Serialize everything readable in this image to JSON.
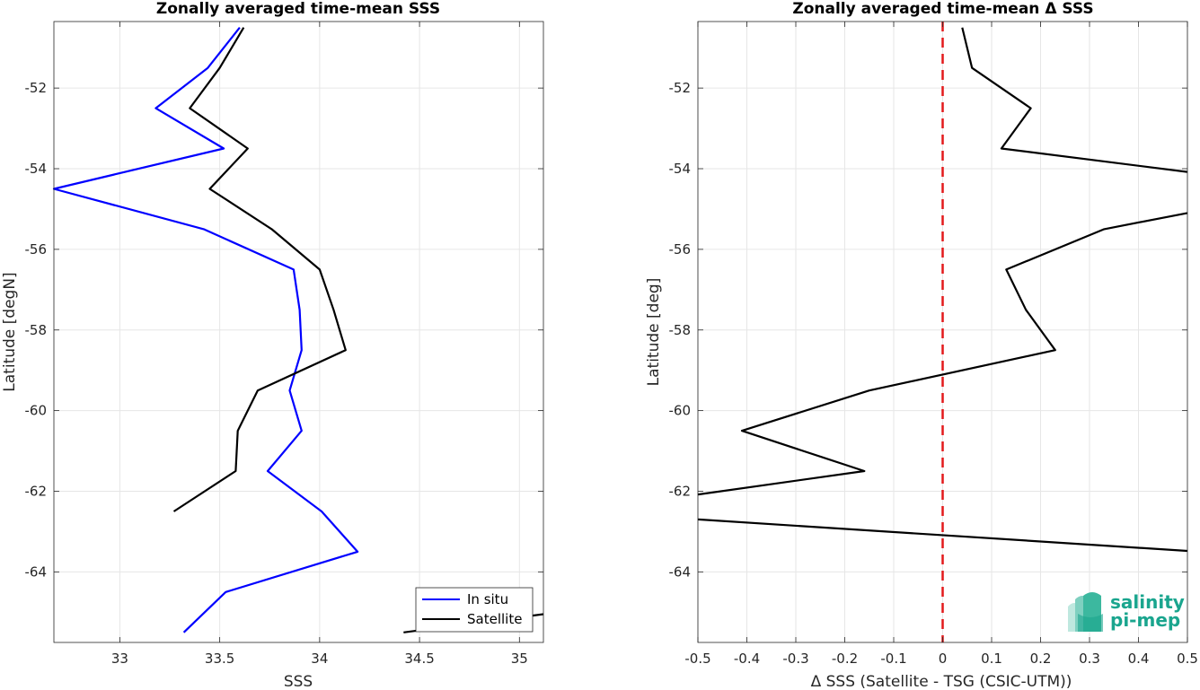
{
  "charts": [
    {
      "title": "Zonally averaged time-mean SSS",
      "xlabel": "SSS",
      "ylabel": "Latitude [degN]",
      "xlim": [
        32.67,
        35.12
      ],
      "ylim": [
        -65.75,
        -50.35
      ],
      "xticks": [
        33,
        33.5,
        34,
        34.5,
        35
      ],
      "xtick_labels": [
        "33",
        "33.5",
        "34",
        "34.5",
        "35"
      ],
      "yticks": [
        -52,
        -54,
        -56,
        -58,
        -60,
        -62,
        -64
      ],
      "ytick_labels": [
        "-52",
        "-54",
        "-56",
        "-58",
        "-60",
        "-62",
        "-64"
      ]
    },
    {
      "title": "Zonally averaged time-mean Δ SSS",
      "xlabel": "Δ SSS (Satellite - TSG (CSIC-UTM))",
      "ylabel": "Latitude [deg]",
      "xlim": [
        -0.5,
        0.5
      ],
      "ylim": [
        -65.75,
        -50.35
      ],
      "xticks": [
        -0.5,
        -0.4,
        -0.3,
        -0.2,
        -0.1,
        0,
        0.1,
        0.2,
        0.3,
        0.4,
        0.5
      ],
      "xtick_labels": [
        "-0.5",
        "-0.4",
        "-0.3",
        "-0.2",
        "-0.1",
        "0",
        "0.1",
        "0.2",
        "0.3",
        "0.4",
        "0.5"
      ],
      "yticks": [
        -52,
        -54,
        -56,
        -58,
        -60,
        -62,
        -64
      ],
      "ytick_labels": [
        "-52",
        "-54",
        "-56",
        "-58",
        "-60",
        "-62",
        "-64"
      ]
    }
  ],
  "legend": {
    "placement": "bottom-right",
    "items": [
      "In situ",
      "Satellite"
    ]
  },
  "logo": {
    "line1": "salinity",
    "line2": "pi-mep"
  },
  "colors": {
    "in_situ": "#0000ff",
    "satellite": "#000000",
    "zero_line": "#e31a1c",
    "grid": "#e6e6e6",
    "logo": "#1aa58e"
  },
  "chart_data": [
    {
      "type": "line",
      "title": "Zonally averaged time-mean SSS",
      "xlabel": "SSS",
      "ylabel": "Latitude [degN]",
      "xlim": [
        32.67,
        35.12
      ],
      "ylim": [
        -65.75,
        -50.35
      ],
      "grid": true,
      "legend": "bottom-right",
      "series": [
        {
          "name": "In situ",
          "color": "#0000ff",
          "points": [
            [
              33.6,
              -50.5
            ],
            [
              33.44,
              -51.5
            ],
            [
              33.18,
              -52.5
            ],
            [
              33.52,
              -53.5
            ],
            [
              32.67,
              -54.5
            ],
            [
              33.42,
              -55.5
            ],
            [
              33.87,
              -56.5
            ],
            [
              33.9,
              -57.5
            ],
            [
              33.91,
              -58.5
            ],
            [
              33.85,
              -59.5
            ],
            [
              33.91,
              -60.5
            ],
            [
              33.74,
              -61.5
            ],
            [
              34.01,
              -62.5
            ],
            [
              34.19,
              -63.5
            ],
            [
              33.53,
              -64.5
            ],
            [
              33.32,
              -65.5
            ]
          ]
        },
        {
          "name": "Satellite",
          "color": "#000000",
          "segments": [
            [
              [
                33.62,
                -50.5
              ],
              [
                33.5,
                -51.5
              ],
              [
                33.35,
                -52.5
              ],
              [
                33.64,
                -53.5
              ],
              [
                33.45,
                -54.5
              ],
              [
                33.76,
                -55.5
              ],
              [
                34.0,
                -56.5
              ],
              [
                34.07,
                -57.5
              ],
              [
                34.13,
                -58.5
              ],
              [
                33.69,
                -59.5
              ],
              [
                33.59,
                -60.5
              ],
              [
                33.58,
                -61.5
              ],
              [
                33.27,
                -62.5
              ]
            ],
            [
              [
                34.42,
                -65.5
              ],
              [
                35.12,
                -65.05
              ]
            ]
          ]
        }
      ]
    },
    {
      "type": "line",
      "title": "Zonally averaged time-mean Δ SSS",
      "xlabel": "Δ SSS (Satellite - TSG (CSIC-UTM))",
      "ylabel": "Latitude [deg]",
      "xlim": [
        -0.5,
        0.5
      ],
      "ylim": [
        -65.75,
        -50.35
      ],
      "grid": true,
      "reference_line": {
        "x": 0,
        "color": "#e31a1c",
        "style": "dashed"
      },
      "series": [
        {
          "name": "",
          "color": "#000000",
          "segments": [
            [
              [
                0.04,
                -50.5
              ],
              [
                0.06,
                -51.5
              ],
              [
                0.18,
                -52.5
              ],
              [
                0.12,
                -53.5
              ],
              [
                0.5,
                -54.08
              ]
            ],
            [
              [
                0.5,
                -55.1
              ],
              [
                0.33,
                -55.5
              ],
              [
                0.13,
                -56.5
              ],
              [
                0.17,
                -57.5
              ],
              [
                0.23,
                -58.5
              ],
              [
                -0.15,
                -59.5
              ],
              [
                -0.41,
                -60.5
              ],
              [
                -0.16,
                -61.5
              ],
              [
                -0.5,
                -62.08
              ]
            ],
            [
              [
                -0.5,
                -62.7
              ],
              [
                0.5,
                -63.48
              ]
            ]
          ]
        }
      ]
    }
  ]
}
